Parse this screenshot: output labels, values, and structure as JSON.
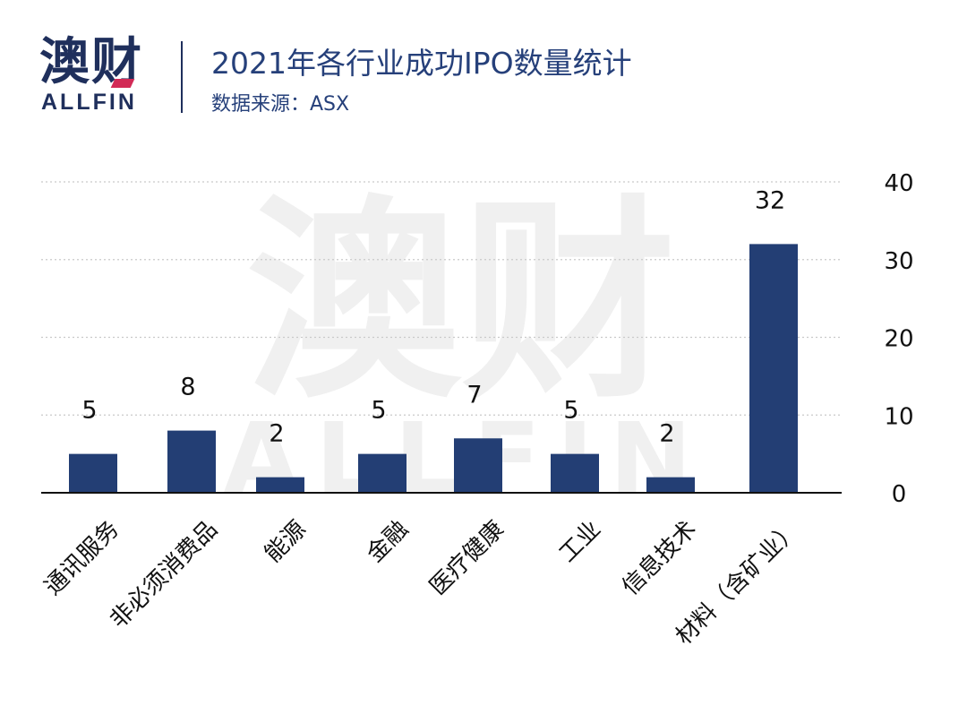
{
  "brand": {
    "logo_cn": "澳财",
    "logo_en": "ALLFIN",
    "accent_color": "#d22a56",
    "primary_color": "#1f2f5c"
  },
  "header": {
    "title": "2021年各行业成功IPO数量统计",
    "subtitle": "数据来源：ASX"
  },
  "watermark": {
    "cn": "澳财",
    "en": "ALLFIN"
  },
  "chart_data": {
    "type": "bar",
    "title": "2021年各行业成功IPO数量统计",
    "categories": [
      "通讯服务",
      "非必须消费品",
      "能源",
      "金融",
      "医疗健康",
      "工业",
      "信息技术",
      "材料（含矿业）"
    ],
    "values": [
      5,
      8,
      2,
      5,
      7,
      5,
      2,
      32
    ],
    "ylim": [
      0,
      40
    ],
    "yticks": [
      0,
      10,
      20,
      30,
      40
    ],
    "y_axis_side": "right",
    "grid": true,
    "bar_color": "#233e74",
    "data_labels": true
  }
}
